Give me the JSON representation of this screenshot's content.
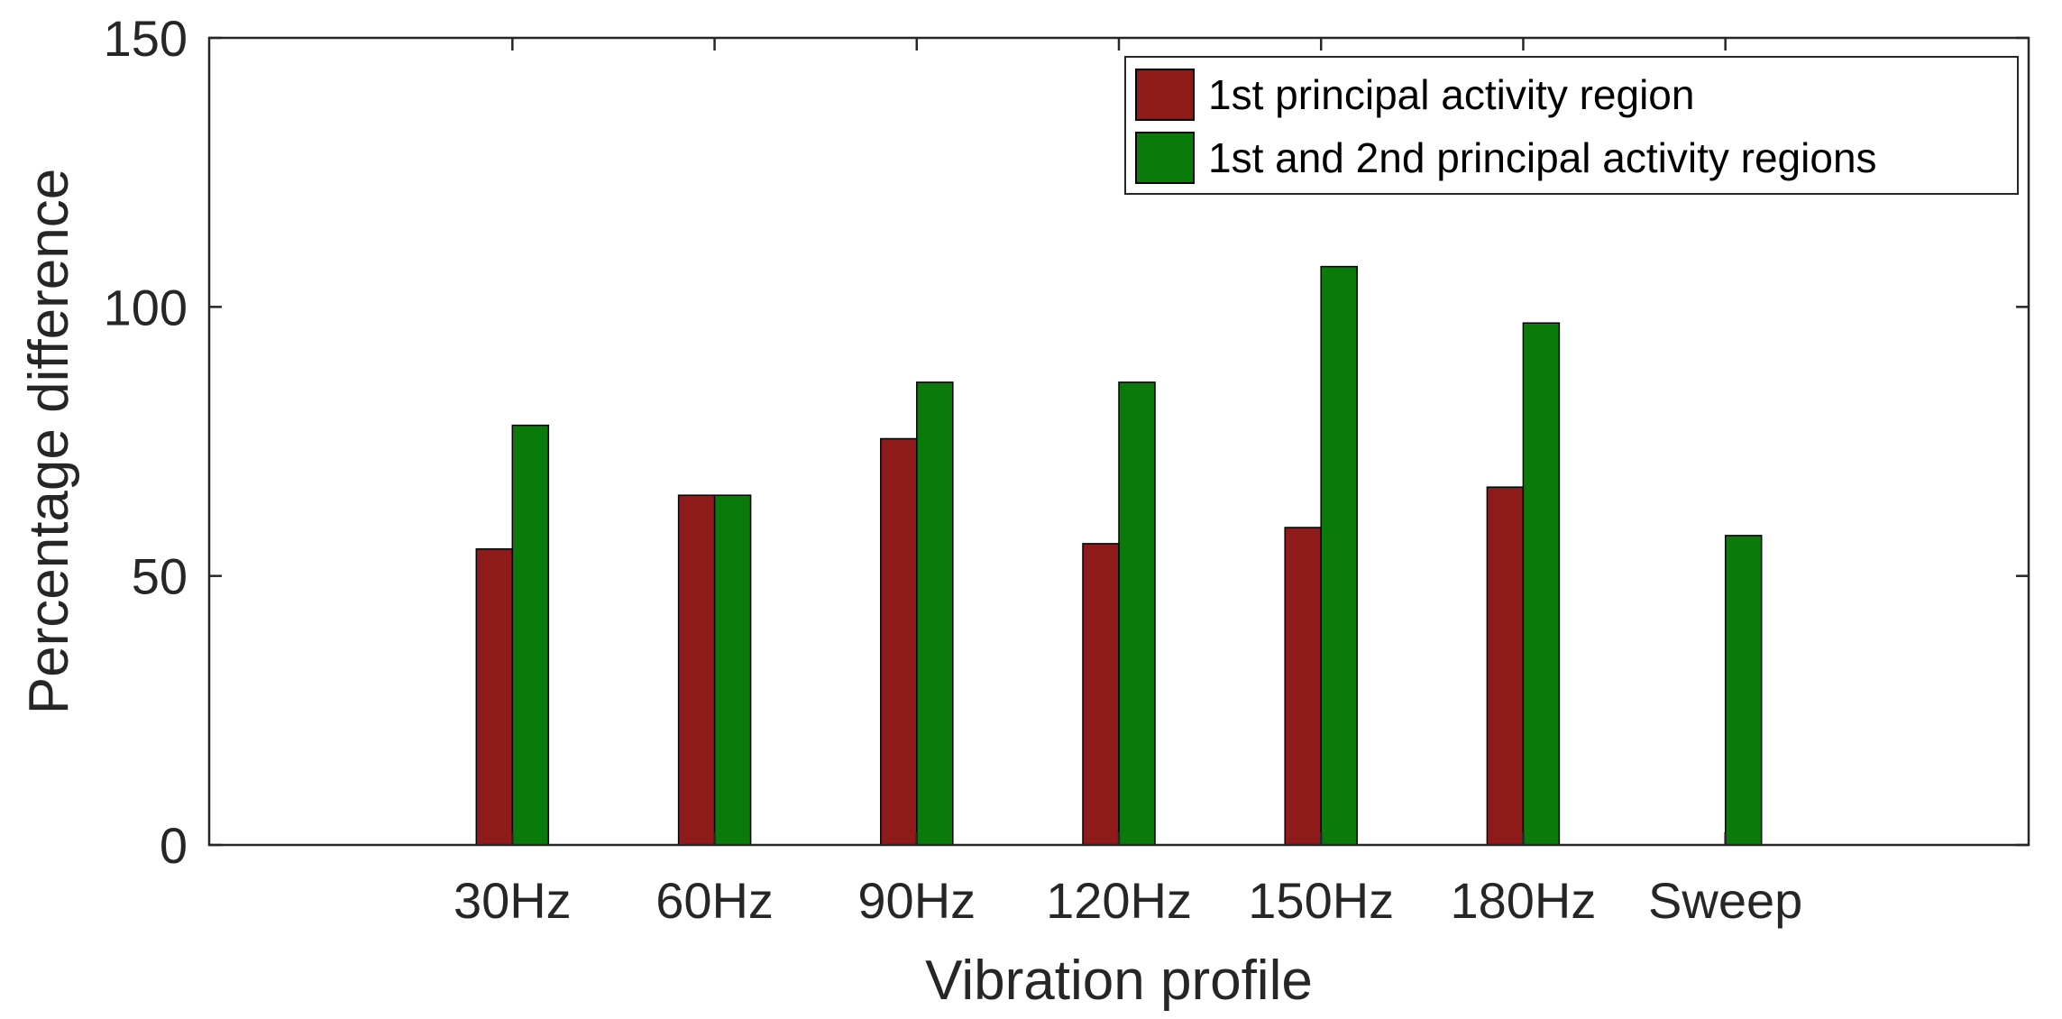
{
  "chart_data": {
    "type": "bar",
    "title": "",
    "xlabel": "Vibration profile",
    "ylabel": "Percentage difference",
    "categories": [
      "30Hz",
      "60Hz",
      "90Hz",
      "120Hz",
      "150Hz",
      "180Hz",
      "Sweep"
    ],
    "ylim": [
      0,
      150
    ],
    "yticks": [
      0,
      50,
      100,
      150
    ],
    "grid": false,
    "legend_position": "top-right",
    "series": [
      {
        "name": "1st principal activity region",
        "color": "#8f1a1a",
        "values": [
          55,
          65,
          75.5,
          56,
          59,
          66.5,
          null
        ]
      },
      {
        "name": "1st and 2nd principal activity regions",
        "color": "#0a7a0a",
        "values": [
          78,
          65,
          86,
          86,
          107.5,
          97,
          57.5
        ]
      }
    ]
  }
}
